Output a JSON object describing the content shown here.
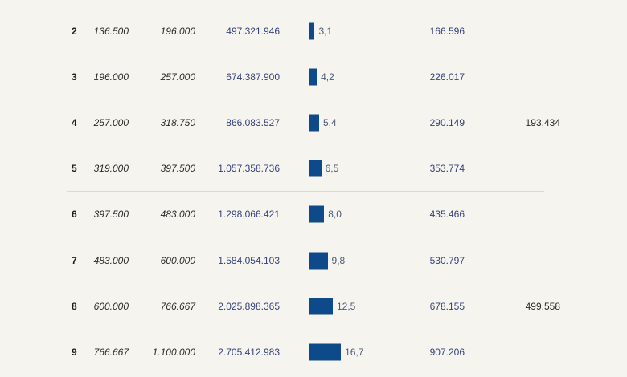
{
  "chart_data": {
    "type": "table",
    "columns": [
      "",
      "",
      "",
      "",
      "",
      "",
      ""
    ],
    "rows": [
      {
        "rank": "2",
        "lower": "136.500",
        "upper": "196.000",
        "total": "497.321.946",
        "share": 3.1,
        "share_label": "3,1",
        "average": "166.596",
        "extra": ""
      },
      {
        "rank": "3",
        "lower": "196.000",
        "upper": "257.000",
        "total": "674.387.900",
        "share": 4.2,
        "share_label": "4,2",
        "average": "226.017",
        "extra": ""
      },
      {
        "rank": "4",
        "lower": "257.000",
        "upper": "318.750",
        "total": "866.083.527",
        "share": 5.4,
        "share_label": "5,4",
        "average": "290.149",
        "extra": "193.434"
      },
      {
        "rank": "5",
        "lower": "319.000",
        "upper": "397.500",
        "total": "1.057.358.736",
        "share": 6.5,
        "share_label": "6,5",
        "average": "353.774",
        "extra": ""
      },
      {
        "rank": "6",
        "lower": "397.500",
        "upper": "483.000",
        "total": "1.298.066.421",
        "share": 8.0,
        "share_label": "8,0",
        "average": "435.466",
        "extra": ""
      },
      {
        "rank": "7",
        "lower": "483.000",
        "upper": "600.000",
        "total": "1.584.054.103",
        "share": 9.8,
        "share_label": "9,8",
        "average": "530.797",
        "extra": ""
      },
      {
        "rank": "8",
        "lower": "600.000",
        "upper": "766.667",
        "total": "2.025.898.365",
        "share": 12.5,
        "share_label": "12,5",
        "average": "678.155",
        "extra": "499.558"
      },
      {
        "rank": "9",
        "lower": "766.667",
        "upper": "1.100.000",
        "total": "2.705.412.983",
        "share": 16.7,
        "share_label": "16,7",
        "average": "907.206",
        "extra": ""
      }
    ],
    "colors": {
      "bar": "#0e4a8a",
      "value_text": "#34427a"
    }
  }
}
